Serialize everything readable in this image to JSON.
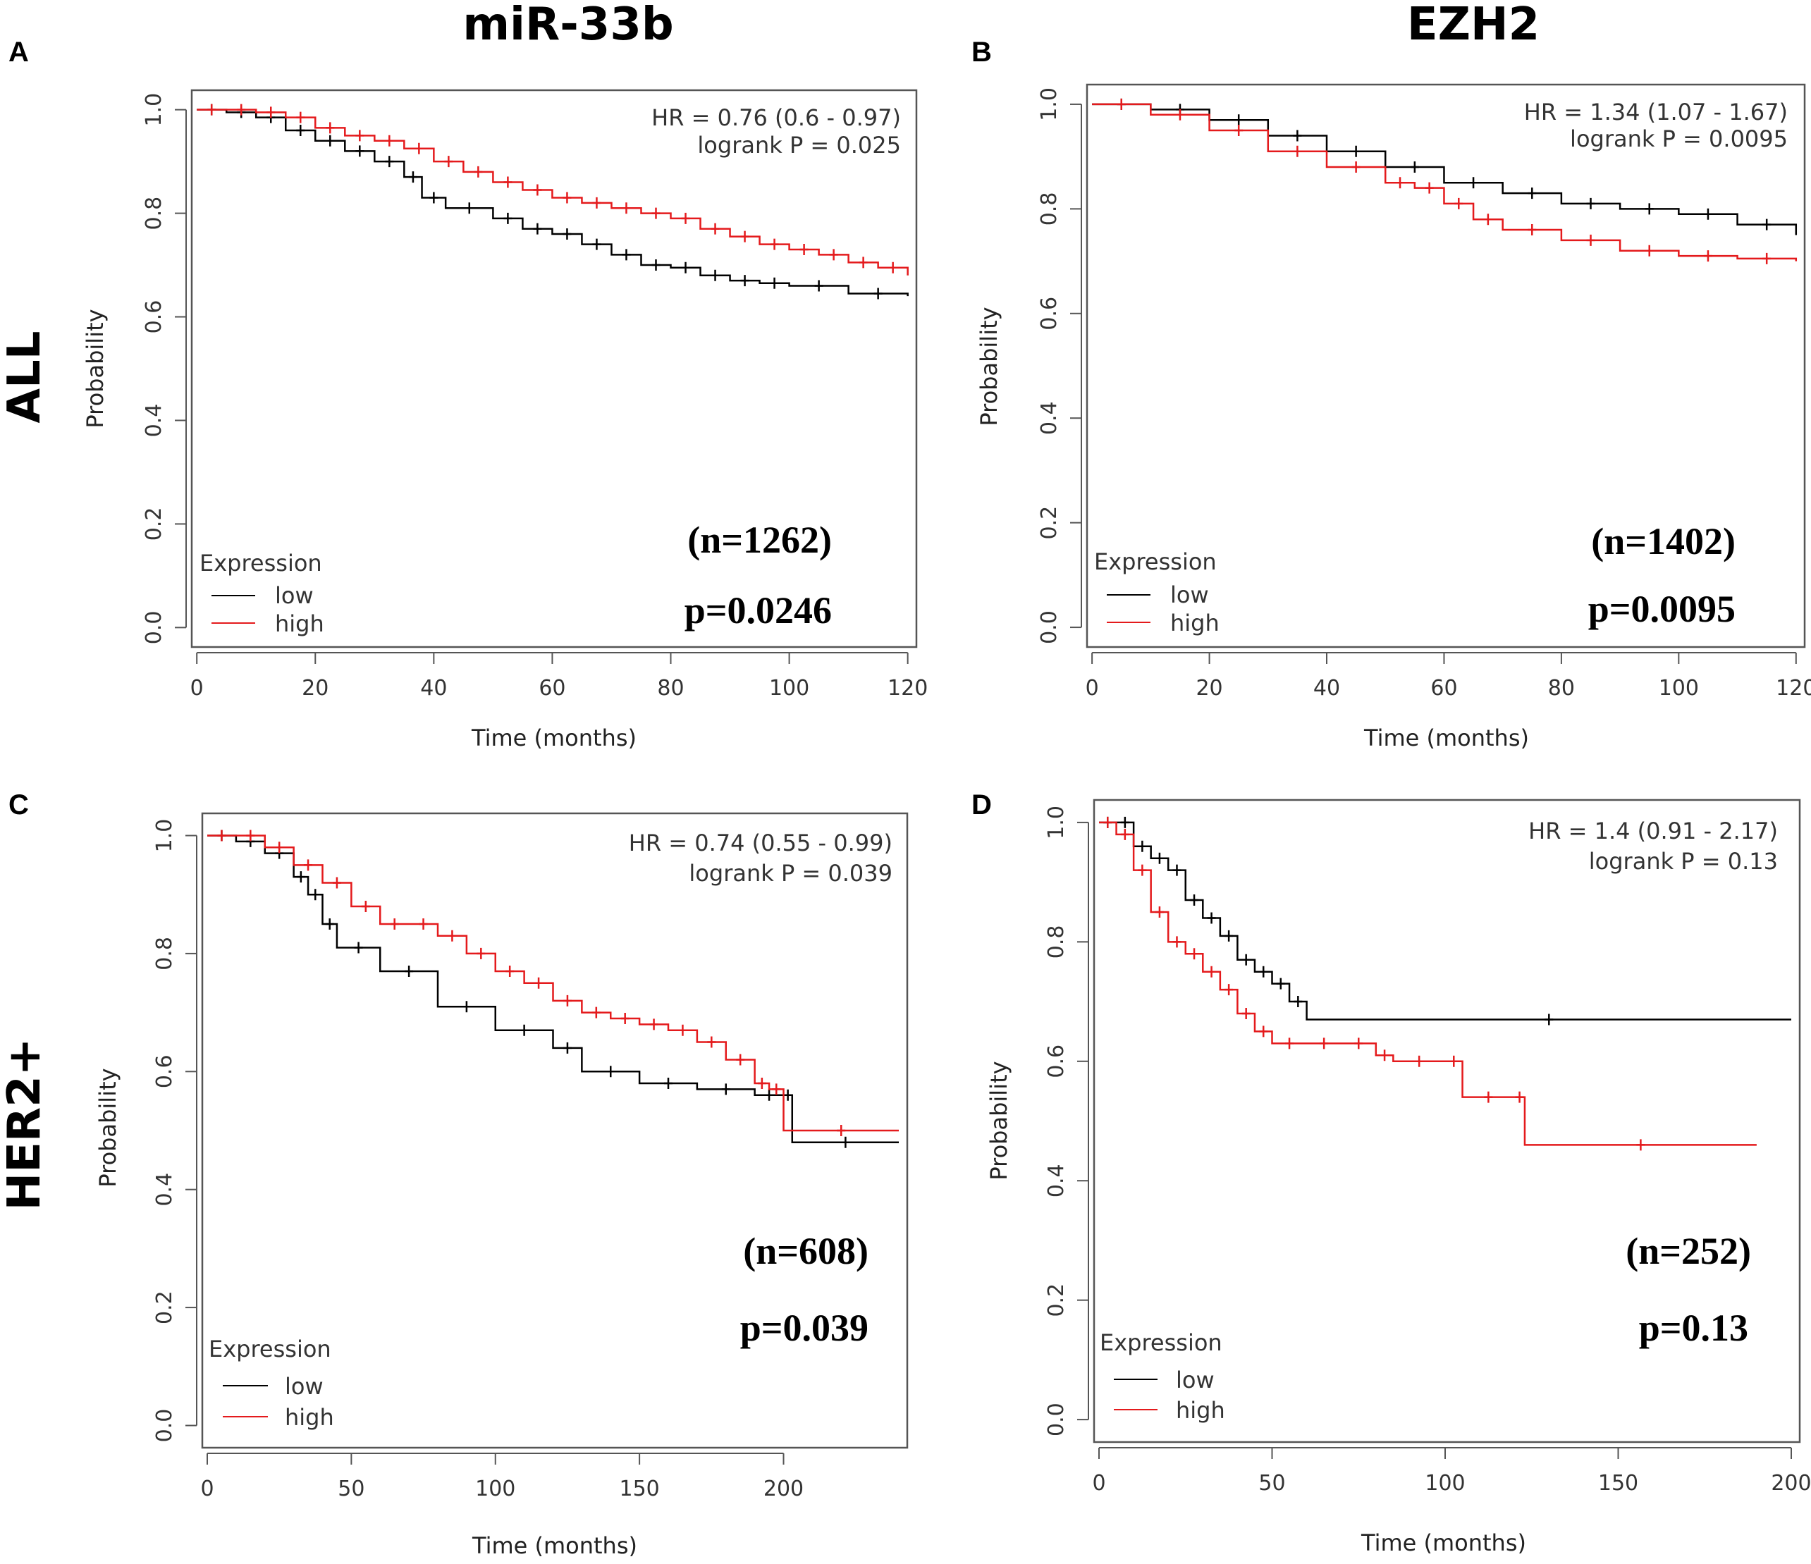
{
  "columns": [
    "miR-33b",
    "EZH2"
  ],
  "rows": [
    "ALL",
    "HER2+"
  ],
  "colors": {
    "low": "#000000",
    "high": "#e41a1c",
    "frame": "#555555"
  },
  "chart_data": [
    {
      "id": "A",
      "type": "line",
      "column": "miR-33b",
      "row": "ALL",
      "xlabel": "Time (months)",
      "ylabel": "Probability",
      "xlim": [
        0,
        120
      ],
      "ylim": [
        0,
        1
      ],
      "xticks": [
        0,
        20,
        40,
        60,
        80,
        100,
        120
      ],
      "yticks": [
        "0.0",
        "0.2",
        "0.4",
        "0.6",
        "0.8",
        "1.0"
      ],
      "hr_text": "HR = 0.76 (0.6 - 0.97)",
      "logrank_text": "logrank P = 0.025",
      "n_text": "(n=1262)",
      "p_text": "p=0.0246",
      "legend": {
        "title": "Expression",
        "low": "low",
        "high": "high"
      },
      "series": [
        {
          "name": "low",
          "x": [
            0,
            5,
            10,
            15,
            20,
            25,
            30,
            35,
            38,
            42,
            50,
            55,
            60,
            65,
            70,
            75,
            80,
            85,
            90,
            95,
            100,
            110,
            120
          ],
          "y": [
            1.0,
            0.995,
            0.985,
            0.96,
            0.94,
            0.92,
            0.9,
            0.87,
            0.83,
            0.81,
            0.79,
            0.77,
            0.76,
            0.74,
            0.72,
            0.7,
            0.695,
            0.68,
            0.67,
            0.665,
            0.66,
            0.645,
            0.64
          ]
        },
        {
          "name": "high",
          "x": [
            0,
            5,
            10,
            15,
            20,
            25,
            30,
            35,
            40,
            45,
            50,
            55,
            60,
            65,
            70,
            75,
            80,
            85,
            90,
            95,
            100,
            105,
            110,
            115,
            120
          ],
          "y": [
            1.0,
            1.0,
            0.995,
            0.985,
            0.965,
            0.95,
            0.94,
            0.925,
            0.9,
            0.88,
            0.86,
            0.845,
            0.83,
            0.82,
            0.81,
            0.8,
            0.79,
            0.77,
            0.755,
            0.74,
            0.73,
            0.72,
            0.705,
            0.695,
            0.68
          ]
        }
      ]
    },
    {
      "id": "B",
      "type": "line",
      "column": "EZH2",
      "row": "ALL",
      "xlabel": "Time (months)",
      "ylabel": "Probability",
      "xlim": [
        0,
        120
      ],
      "ylim": [
        0,
        1
      ],
      "xticks": [
        0,
        20,
        40,
        60,
        80,
        100,
        120
      ],
      "yticks": [
        "0.0",
        "0.2",
        "0.4",
        "0.6",
        "0.8",
        "1.0"
      ],
      "hr_text": "HR = 1.34 (1.07 - 1.67)",
      "logrank_text": "logrank P = 0.0095",
      "n_text": "(n=1402)",
      "p_text": "p=0.0095",
      "legend": {
        "title": "Expression",
        "low": "low",
        "high": "high"
      },
      "series": [
        {
          "name": "low",
          "x": [
            0,
            10,
            20,
            30,
            40,
            50,
            60,
            70,
            80,
            90,
            100,
            110,
            120
          ],
          "y": [
            1.0,
            0.99,
            0.97,
            0.94,
            0.91,
            0.88,
            0.85,
            0.83,
            0.81,
            0.8,
            0.79,
            0.77,
            0.75
          ]
        },
        {
          "name": "high",
          "x": [
            0,
            10,
            20,
            30,
            40,
            50,
            55,
            60,
            65,
            70,
            80,
            90,
            100,
            110,
            120
          ],
          "y": [
            1.0,
            0.98,
            0.95,
            0.91,
            0.88,
            0.85,
            0.84,
            0.81,
            0.78,
            0.76,
            0.74,
            0.72,
            0.71,
            0.705,
            0.7
          ]
        }
      ]
    },
    {
      "id": "C",
      "type": "line",
      "column": "miR-33b",
      "row": "HER2+",
      "xlabel": "Time (months)",
      "ylabel": "Probability",
      "xlim": [
        0,
        240
      ],
      "ylim": [
        0,
        1
      ],
      "xticks": [
        0,
        50,
        100,
        150,
        200
      ],
      "yticks": [
        "0.0",
        "0.2",
        "0.4",
        "0.6",
        "0.8",
        "1.0"
      ],
      "hr_text": "HR = 0.74 (0.55 - 0.99)",
      "logrank_text": "logrank P = 0.039",
      "n_text": "(n=608)",
      "p_text": "p=0.039",
      "legend": {
        "title": "Expression",
        "low": "low",
        "high": "high"
      },
      "series": [
        {
          "name": "low",
          "x": [
            0,
            10,
            20,
            30,
            35,
            40,
            45,
            60,
            80,
            100,
            120,
            130,
            150,
            170,
            190,
            200,
            203,
            240
          ],
          "y": [
            1.0,
            0.99,
            0.97,
            0.93,
            0.9,
            0.85,
            0.81,
            0.77,
            0.71,
            0.67,
            0.64,
            0.6,
            0.58,
            0.57,
            0.56,
            0.56,
            0.48,
            0.48
          ]
        },
        {
          "name": "high",
          "x": [
            0,
            10,
            20,
            30,
            40,
            50,
            60,
            70,
            80,
            90,
            100,
            110,
            120,
            130,
            140,
            150,
            160,
            170,
            180,
            190,
            195,
            200,
            240
          ],
          "y": [
            1.0,
            1.0,
            0.98,
            0.95,
            0.92,
            0.88,
            0.85,
            0.85,
            0.83,
            0.8,
            0.77,
            0.75,
            0.72,
            0.7,
            0.69,
            0.68,
            0.67,
            0.65,
            0.62,
            0.58,
            0.57,
            0.5,
            0.5
          ]
        }
      ]
    },
    {
      "id": "D",
      "type": "line",
      "column": "EZH2",
      "row": "HER2+",
      "xlabel": "Time (months)",
      "ylabel": "Probability",
      "xlim": [
        0,
        200
      ],
      "ylim": [
        0,
        1
      ],
      "xticks": [
        0,
        50,
        100,
        150,
        200
      ],
      "yticks": [
        "0.0",
        "0.2",
        "0.4",
        "0.6",
        "0.8",
        "1.0"
      ],
      "hr_text": "HR = 1.4 (0.91 - 2.17)",
      "logrank_text": "logrank P = 0.13",
      "n_text": "(n=252)",
      "p_text": "p=0.13",
      "legend": {
        "title": "Expression",
        "low": "low",
        "high": "high"
      },
      "series": [
        {
          "name": "low",
          "x": [
            0,
            5,
            10,
            15,
            20,
            25,
            30,
            35,
            40,
            45,
            50,
            55,
            60,
            200
          ],
          "y": [
            1.0,
            1.0,
            0.96,
            0.94,
            0.92,
            0.87,
            0.84,
            0.81,
            0.77,
            0.75,
            0.73,
            0.7,
            0.67,
            0.67
          ]
        },
        {
          "name": "high",
          "x": [
            0,
            5,
            10,
            15,
            20,
            25,
            30,
            35,
            40,
            45,
            50,
            60,
            70,
            80,
            85,
            100,
            105,
            120,
            123,
            190
          ],
          "y": [
            1.0,
            0.98,
            0.92,
            0.85,
            0.8,
            0.78,
            0.75,
            0.72,
            0.68,
            0.65,
            0.63,
            0.63,
            0.63,
            0.61,
            0.6,
            0.6,
            0.54,
            0.54,
            0.46,
            0.46
          ]
        }
      ]
    }
  ]
}
